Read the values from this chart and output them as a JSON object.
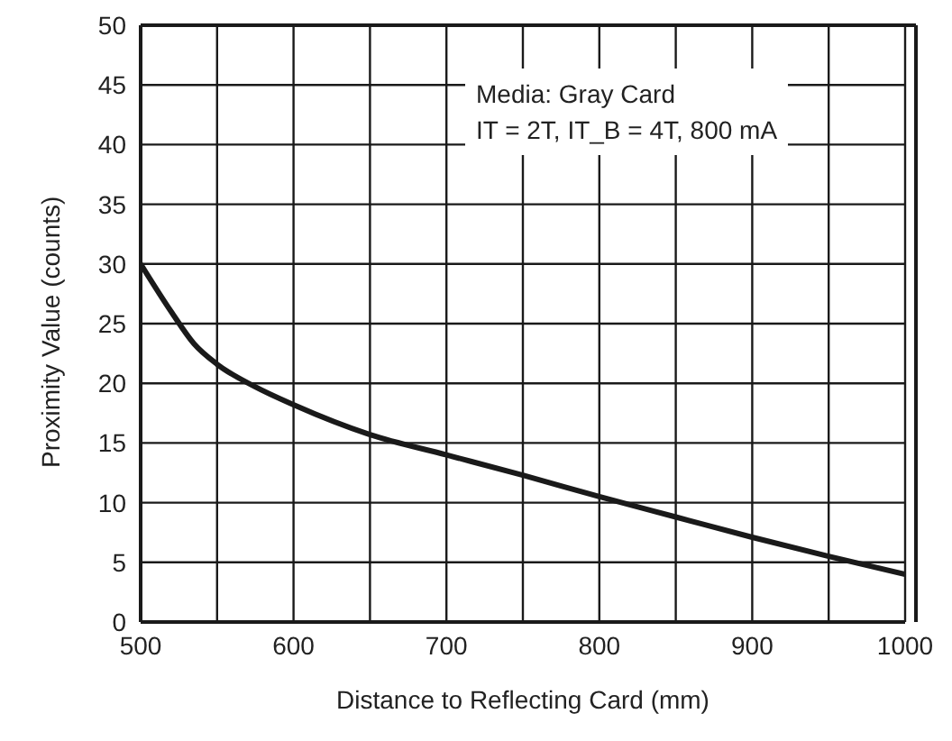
{
  "chart_data": {
    "type": "line",
    "xlabel": "Distance to Reflecting Card (mm)",
    "ylabel": "Proximity Value (counts)",
    "annotations": [
      "Media: Gray Card",
      "IT = 2T, IT_B = 4T, 800 mA"
    ],
    "series": [
      {
        "color": "#1a1a1a",
        "x": [
          500,
          520,
          535,
          550,
          575,
          600,
          650,
          700,
          750,
          800,
          850,
          900,
          950,
          1000
        ],
        "values": [
          30,
          26,
          23.3,
          21.6,
          19.7,
          18.2,
          15.7,
          14,
          12.3,
          10.5,
          8.8,
          7.1,
          5.5,
          4
        ]
      }
    ],
    "xlim": [
      500,
      1000
    ],
    "xticks": [
      500,
      {
        "value": 550,
        "label": null
      },
      600,
      {
        "value": 650,
        "label": null
      },
      700,
      {
        "value": 750,
        "label": null
      },
      800,
      {
        "value": 850,
        "label": null
      },
      900,
      {
        "value": 950,
        "label": null
      },
      1000
    ],
    "ylim": [
      0,
      50
    ],
    "yticks": [
      0,
      5,
      10,
      15,
      20,
      25,
      30,
      35,
      40,
      45,
      50
    ],
    "grid": true,
    "legend": false,
    "marker": "none",
    "line_style": "solid"
  }
}
